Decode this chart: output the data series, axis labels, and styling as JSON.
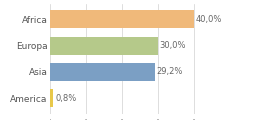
{
  "categories": [
    "Africa",
    "Europa",
    "Asia",
    "America"
  ],
  "values": [
    40.0,
    30.0,
    29.2,
    0.8
  ],
  "labels": [
    "40,0%",
    "30,0%",
    "29,2%",
    "0,8%"
  ],
  "bar_colors": [
    "#f0b97a",
    "#b5c98a",
    "#7b9fc4",
    "#e8c84a"
  ],
  "background_color": "#ffffff",
  "xlim": [
    0,
    50
  ],
  "bar_height": 0.68,
  "label_fontsize": 6.0,
  "tick_fontsize": 6.5,
  "grid_color": "#d0d0d0"
}
